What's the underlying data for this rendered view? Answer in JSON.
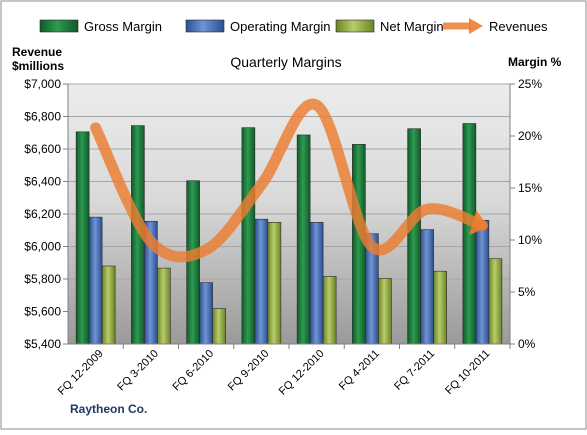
{
  "chart_data": {
    "type": "bar",
    "title": "Quarterly Margins",
    "left_axis_label_line1": "Revenue",
    "left_axis_label_line2": "$millions",
    "right_axis_label": "Margin %",
    "company": "Raytheon Co.",
    "categories": [
      "FQ 12-2009",
      "FQ 3-2010",
      "FQ 6-2010",
      "FQ 9-2010",
      "FQ 12-2010",
      "FQ 4-2011",
      "FQ 7-2011",
      "FQ 10-2011"
    ],
    "left_ticks": [
      "$5,400",
      "$5,600",
      "$5,800",
      "$6,000",
      "$6,200",
      "$6,400",
      "$6,600",
      "$6,800",
      "$7,000"
    ],
    "right_ticks": [
      "0%",
      "5%",
      "10%",
      "15%",
      "20%",
      "25%"
    ],
    "left_range": [
      5400,
      7000
    ],
    "right_range": [
      0,
      25
    ],
    "legend_position": "top",
    "series": [
      {
        "name": "Gross Margin",
        "axis": "right",
        "kind": "bar",
        "color": "#1e7a3c",
        "values": [
          20.4,
          21.0,
          15.7,
          20.8,
          20.1,
          19.2,
          20.7,
          21.2
        ]
      },
      {
        "name": "Operating Margin",
        "axis": "right",
        "kind": "bar",
        "color": "#4a72b8",
        "values": [
          12.2,
          11.8,
          5.9,
          12.0,
          11.7,
          10.6,
          11.0,
          11.9
        ]
      },
      {
        "name": "Net Margin",
        "axis": "right",
        "kind": "bar",
        "color": "#8faa3c",
        "values": [
          7.5,
          7.3,
          3.4,
          11.7,
          6.5,
          6.3,
          7.0,
          8.2
        ]
      },
      {
        "name": "Revenues",
        "axis": "left",
        "kind": "line",
        "color": "#ed7d31",
        "values": [
          6730,
          6030,
          5980,
          6380,
          6870,
          6000,
          6230,
          6130
        ]
      }
    ]
  }
}
